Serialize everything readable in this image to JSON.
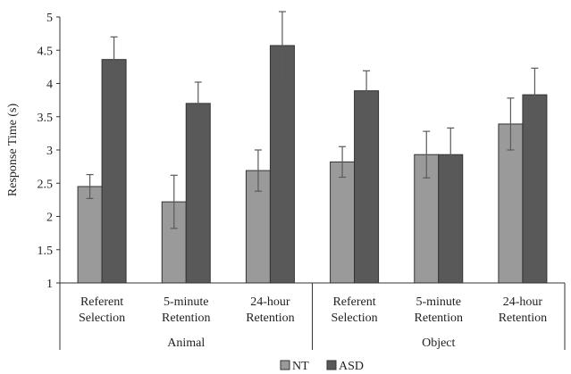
{
  "chart_data": {
    "type": "bar",
    "ylabel": "Response Time (s)",
    "ylim": [
      1,
      5
    ],
    "yticks": [
      "1",
      "1.5",
      "2",
      "2.5",
      "3",
      "3.5",
      "4",
      "4.5",
      "5"
    ],
    "groups": [
      {
        "label": "Animal",
        "categories": [
          "Referent Selection",
          "5-minute Retention",
          "24-hour Retention"
        ]
      },
      {
        "label": "Object",
        "categories": [
          "Referent Selection",
          "5-minute Retention",
          "24-hour Retention"
        ]
      }
    ],
    "category_lines": [
      [
        "Referent",
        "Selection"
      ],
      [
        "5-minute",
        "Retention"
      ],
      [
        "24-hour",
        "Retention"
      ],
      [
        "Referent",
        "Selection"
      ],
      [
        "5-minute",
        "Retention"
      ],
      [
        "24-hour",
        "Retention"
      ]
    ],
    "series": [
      {
        "name": "NT",
        "color": "#9a9a9a",
        "values": [
          2.45,
          2.22,
          2.69,
          2.82,
          2.93,
          3.39
        ],
        "errors": [
          0.18,
          0.4,
          0.31,
          0.23,
          0.35,
          0.39
        ]
      },
      {
        "name": "ASD",
        "color": "#595959",
        "values": [
          4.36,
          3.7,
          4.57,
          3.89,
          2.93,
          3.83
        ],
        "errors": [
          0.34,
          0.32,
          0.51,
          0.3,
          0.4,
          0.4
        ]
      }
    ],
    "legend_position": "bottom",
    "grid": false
  }
}
